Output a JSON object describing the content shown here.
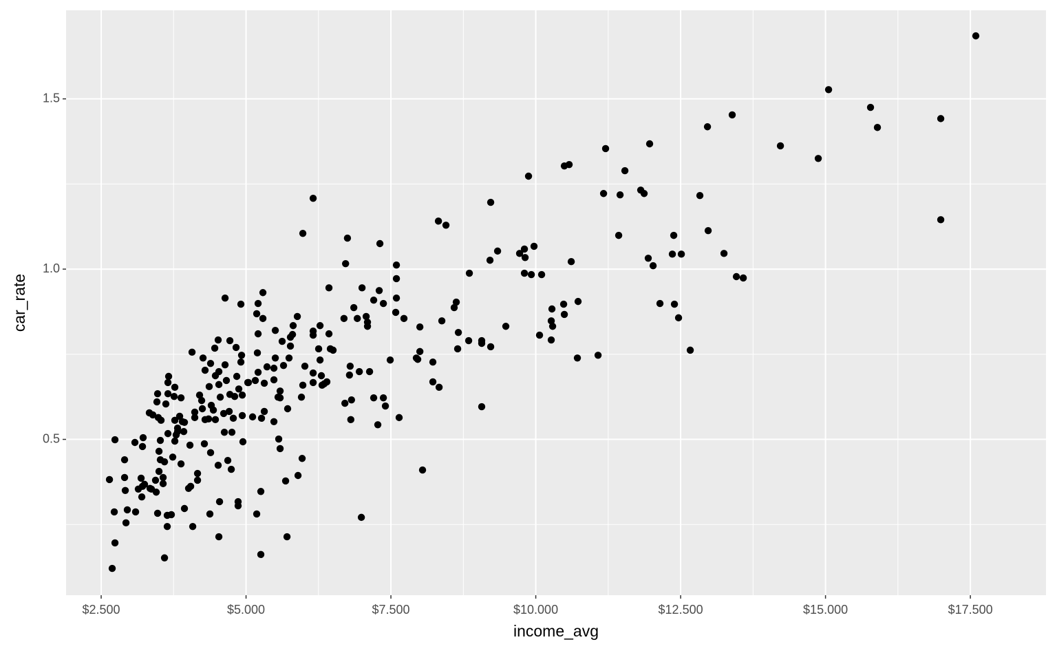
{
  "chart_data": {
    "type": "scatter",
    "x_label": "income_avg",
    "y_label": "car_rate",
    "color": "#000000",
    "grid": true,
    "background": "#ebebeb",
    "xlim": [
      1894,
      18805
    ],
    "ylim": [
      0.0424,
      1.76
    ],
    "xticks": [
      {
        "value": 2500,
        "label": "$2.500"
      },
      {
        "value": 5000,
        "label": "$5.000"
      },
      {
        "value": 7500,
        "label": "$7.500"
      },
      {
        "value": 10000,
        "label": "$10.000"
      },
      {
        "value": 12500,
        "label": "$12.500"
      },
      {
        "value": 15000,
        "label": "$15.000"
      },
      {
        "value": 17500,
        "label": "$17.500"
      }
    ],
    "yticks": [
      {
        "value": 0.5,
        "label": "0.5"
      },
      {
        "value": 1.0,
        "label": "1.0"
      },
      {
        "value": 1.5,
        "label": "1.5"
      }
    ],
    "x": [
      17594,
      15053,
      15777,
      15896,
      16989,
      16989,
      14222,
      14875,
      13390,
      12963,
      12975,
      12832,
      12381,
      12357,
      12512,
      13248,
      13462,
      13581,
      11965,
      11941,
      12025,
      11538,
      11455,
      11205,
      11170,
      11431,
      11811,
      11870,
      12143,
      12393,
      12464,
      12666,
      11075,
      10718,
      10730,
      10481,
      10493,
      10279,
      10267,
      10291,
      10267,
      10065,
      10576,
      10493,
      10612,
      10101,
      9923,
      9970,
      9804,
      9816,
      9721,
      9804,
      9875,
      9222,
      9341,
      9210,
      9483,
      9222,
      9067,
      9067,
      9067,
      8854,
      8842,
      8664,
      8652,
      8628,
      8592,
      8379,
      8320,
      8450,
      8332,
      8224,
      8224,
      8046,
      8000,
      8000,
      7963,
      7939,
      7725,
      7642,
      7595,
      7595,
      7595,
      7583,
      7488,
      7370,
      7310,
      7298,
      7203,
      7405,
      7370,
      7274,
      7203,
      7132,
      7096,
      7096,
      7073,
      7002,
      6955,
      6920,
      6860,
      6990,
      6820,
      6808,
      6797,
      6785,
      6750,
      6718,
      6690,
      6706,
      6502,
      6455,
      6431,
      6431,
      6395,
      6348,
      6300,
      6277,
      6253,
      6277,
      6312,
      6158,
      6158,
      6158,
      6158,
      6158,
      5980,
      6015,
      5980,
      5956,
      5885,
      5813,
      5802,
      5897,
      5968,
      5766,
      5766,
      5742,
      5718,
      5707,
      5683,
      5647,
      5623,
      5588,
      5588,
      5552,
      5564,
      5588,
      5505,
      5481,
      5481,
      5505,
      5481,
      5362,
      5291,
      5291,
      5315,
      5315,
      5267,
      5255,
      5255,
      5208,
      5184,
      5208,
      5196,
      5208,
      5160,
      5184,
      5113,
      5041,
      5030,
      4911,
      4923,
      4911,
      4935,
      4935,
      4875,
      4863,
      4863,
      4946,
      4828,
      4840,
      4804,
      4780,
      4756,
      4721,
      4721,
      4709,
      4745,
      4685,
      4638,
      4638,
      4661,
      4614,
      4626,
      4555,
      4531,
      4531,
      4519,
      4519,
      4543,
      4531,
      4471,
      4436,
      4471,
      4460,
      4388,
      4376,
      4364,
      4353,
      4400,
      4388,
      4293,
      4293,
      4246,
      4281,
      4234,
      4258,
      4198,
      4163,
      4163,
      4115,
      4115,
      4068,
      4044,
      4032,
      4008,
      4080,
      3937,
      3925,
      3901,
      3937,
      3878,
      3878,
      3854,
      3818,
      3818,
      3794,
      3771,
      3759,
      3771,
      3771,
      3735,
      3711,
      3664,
      3652,
      3652,
      3652,
      3640,
      3640,
      3616,
      3593,
      3593,
      3569,
      3569,
      3533,
      3521,
      3521,
      3498,
      3486,
      3474,
      3474,
      3498,
      3462,
      3450,
      3438,
      3391,
      3367,
      3331,
      3343,
      3248,
      3213,
      3224,
      3213,
      3189,
      3201,
      3141,
      3082,
      3094,
      2951,
      2904,
      2904,
      2916,
      2928,
      2726,
      2738,
      2738,
      2690,
      2643
    ],
    "values": [
      1.685,
      1.527,
      1.475,
      1.416,
      1.442,
      1.145,
      1.362,
      1.325,
      1.453,
      1.418,
      1.113,
      1.216,
      1.099,
      1.044,
      1.044,
      1.046,
      0.978,
      0.974,
      1.368,
      1.032,
      1.01,
      1.289,
      1.218,
      1.354,
      1.222,
      1.099,
      1.232,
      1.222,
      0.899,
      0.897,
      0.857,
      0.762,
      0.747,
      0.739,
      0.905,
      0.897,
      0.867,
      0.883,
      0.848,
      0.832,
      0.792,
      0.806,
      1.307,
      1.303,
      1.022,
      0.984,
      0.984,
      1.067,
      1.059,
      1.034,
      1.046,
      0.988,
      1.273,
      1.196,
      1.053,
      1.026,
      0.832,
      0.772,
      0.79,
      0.782,
      0.596,
      0.988,
      0.79,
      0.814,
      0.766,
      0.903,
      0.887,
      0.848,
      1.141,
      1.129,
      0.653,
      0.727,
      0.669,
      0.41,
      0.83,
      0.758,
      0.735,
      0.739,
      0.855,
      0.564,
      1.012,
      0.972,
      0.915,
      0.873,
      0.733,
      0.899,
      1.075,
      0.937,
      0.909,
      0.598,
      0.622,
      0.543,
      0.622,
      0.699,
      0.832,
      0.844,
      0.861,
      0.945,
      0.699,
      0.855,
      0.887,
      0.271,
      0.616,
      0.558,
      0.715,
      0.689,
      1.091,
      1.016,
      0.855,
      0.606,
      0.762,
      0.766,
      0.945,
      0.81,
      0.669,
      0.663,
      0.687,
      0.834,
      0.766,
      0.733,
      0.659,
      1.208,
      0.818,
      0.806,
      0.667,
      0.695,
      1.105,
      0.715,
      0.659,
      0.624,
      0.861,
      0.834,
      0.808,
      0.394,
      0.444,
      0.774,
      0.8,
      0.739,
      0.59,
      0.214,
      0.378,
      0.717,
      0.788,
      0.642,
      0.622,
      0.624,
      0.501,
      0.473,
      0.739,
      0.709,
      0.675,
      0.82,
      0.552,
      0.713,
      0.931,
      0.855,
      0.665,
      0.582,
      0.562,
      0.347,
      0.162,
      0.81,
      0.869,
      0.899,
      0.754,
      0.697,
      0.673,
      0.281,
      0.566,
      0.667,
      0.667,
      0.897,
      0.747,
      0.727,
      0.63,
      0.57,
      0.648,
      0.317,
      0.305,
      0.493,
      0.77,
      0.685,
      0.626,
      0.562,
      0.521,
      0.79,
      0.632,
      0.582,
      0.412,
      0.438,
      0.915,
      0.719,
      0.673,
      0.576,
      0.521,
      0.624,
      0.699,
      0.661,
      0.792,
      0.424,
      0.317,
      0.214,
      0.558,
      0.586,
      0.687,
      0.768,
      0.723,
      0.281,
      0.655,
      0.56,
      0.6,
      0.461,
      0.703,
      0.558,
      0.59,
      0.487,
      0.614,
      0.739,
      0.63,
      0.4,
      0.38,
      0.58,
      0.564,
      0.756,
      0.362,
      0.483,
      0.356,
      0.244,
      0.55,
      0.523,
      0.552,
      0.297,
      0.622,
      0.428,
      0.568,
      0.533,
      0.523,
      0.513,
      0.653,
      0.626,
      0.556,
      0.495,
      0.448,
      0.279,
      0.685,
      0.667,
      0.634,
      0.517,
      0.277,
      0.244,
      0.604,
      0.434,
      0.152,
      0.37,
      0.388,
      0.556,
      0.497,
      0.44,
      0.465,
      0.564,
      0.634,
      0.283,
      0.406,
      0.61,
      0.345,
      0.38,
      0.572,
      0.354,
      0.578,
      0.356,
      0.368,
      0.362,
      0.505,
      0.479,
      0.386,
      0.331,
      0.354,
      0.491,
      0.287,
      0.293,
      0.44,
      0.388,
      0.35,
      0.255,
      0.287,
      0.196,
      0.499,
      0.121,
      0.382
    ]
  }
}
